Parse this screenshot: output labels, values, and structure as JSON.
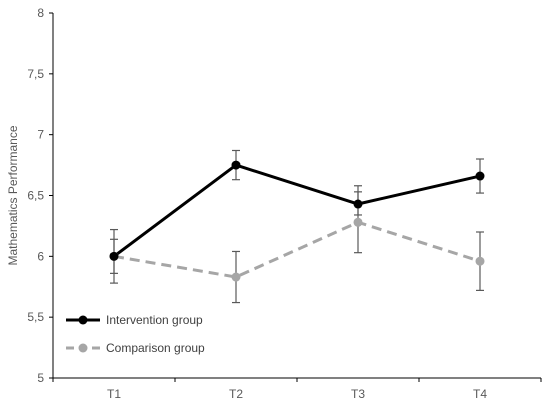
{
  "chart_data": {
    "type": "line",
    "title": "",
    "xlabel": "",
    "ylabel": "Mathematics Performance",
    "categories": [
      "T1",
      "T2",
      "T3",
      "T4"
    ],
    "ylim": [
      5,
      8
    ],
    "y_ticks": [
      "5",
      "5,5",
      "6",
      "6,5",
      "7",
      "7,5",
      "8"
    ],
    "y_tick_values": [
      5,
      5.5,
      6,
      6.5,
      7,
      7.5,
      8
    ],
    "grid": false,
    "legend_position": "bottom-left",
    "series": [
      {
        "name": "Intervention group",
        "values": [
          6.0,
          6.75,
          6.43,
          6.66
        ],
        "error_low": [
          5.86,
          6.63,
          6.34,
          6.52
        ],
        "error_high": [
          6.14,
          6.87,
          6.53,
          6.8
        ],
        "color": "#000000",
        "dashed": false
      },
      {
        "name": "Comparison group",
        "values": [
          6.0,
          5.83,
          6.28,
          5.96
        ],
        "error_low": [
          5.78,
          5.62,
          6.03,
          5.72
        ],
        "error_high": [
          6.22,
          6.04,
          6.58,
          6.2
        ],
        "color": "#a6a6a6",
        "dashed": true
      }
    ]
  }
}
